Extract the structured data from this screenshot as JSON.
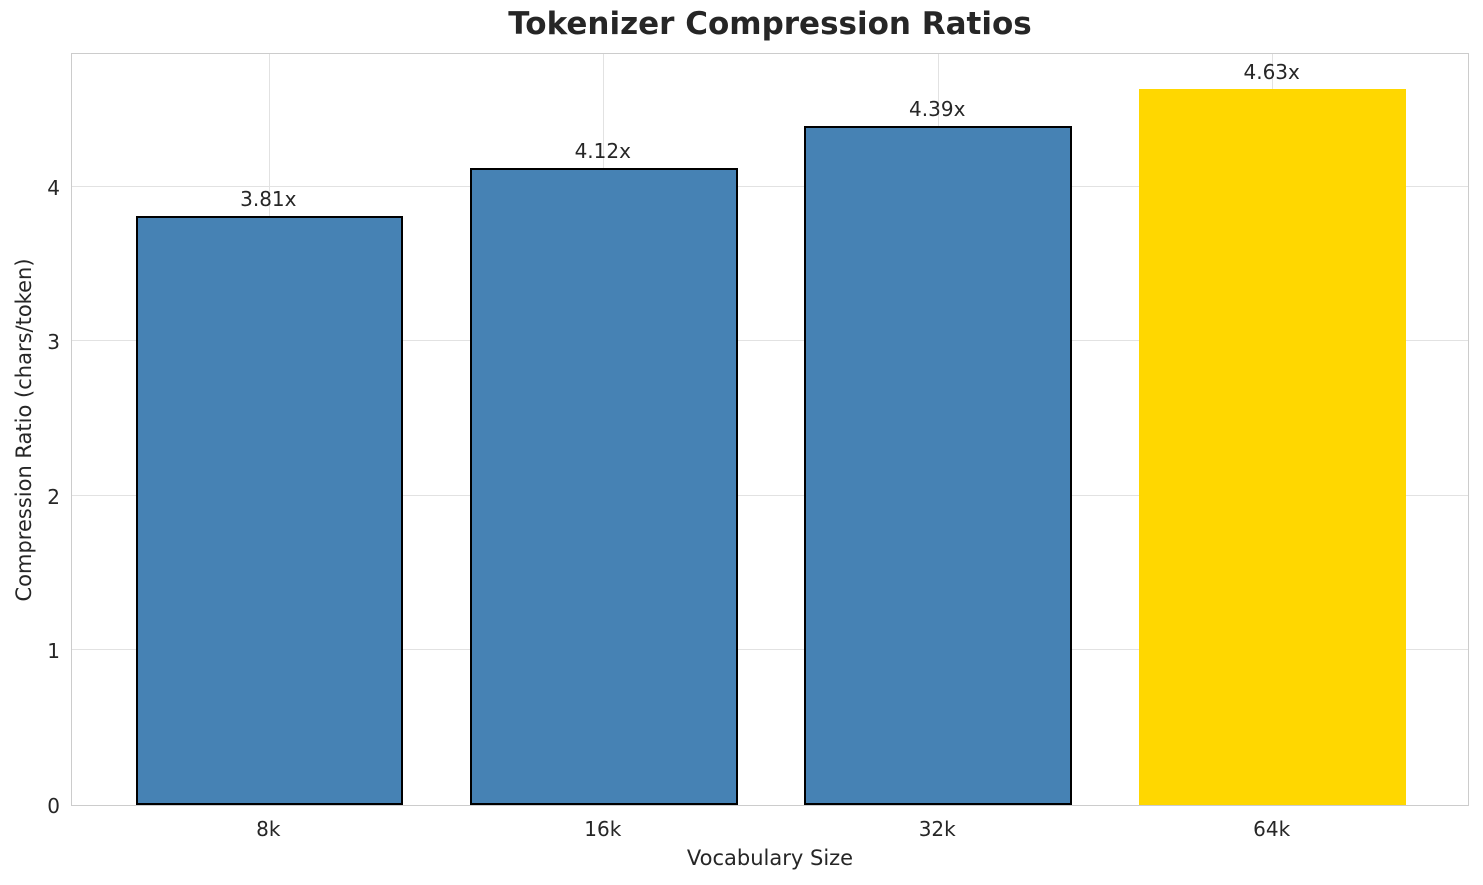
{
  "chart_data": {
    "type": "bar",
    "title": "Tokenizer Compression Ratios",
    "xlabel": "Vocabulary Size",
    "ylabel": "Compression Ratio (chars/token)",
    "categories": [
      "8k",
      "16k",
      "32k",
      "64k"
    ],
    "values": [
      3.81,
      4.12,
      4.39,
      4.63
    ],
    "bar_labels": [
      "3.81x",
      "4.12x",
      "4.39x",
      "4.63x"
    ],
    "yticks": [
      0,
      1,
      2,
      3,
      4
    ],
    "ylim": [
      0,
      4.87
    ],
    "xlim": [
      -0.59,
      3.59
    ],
    "bar_width": 0.8,
    "grid": true,
    "legend": false,
    "highlight_index": 3,
    "colors": {
      "bar": "#4682B4",
      "highlight": "#FFD700",
      "bar_edge": "#000000",
      "grid": "#e2e2e2",
      "spine": "#cccccc",
      "text": "#262626"
    }
  }
}
